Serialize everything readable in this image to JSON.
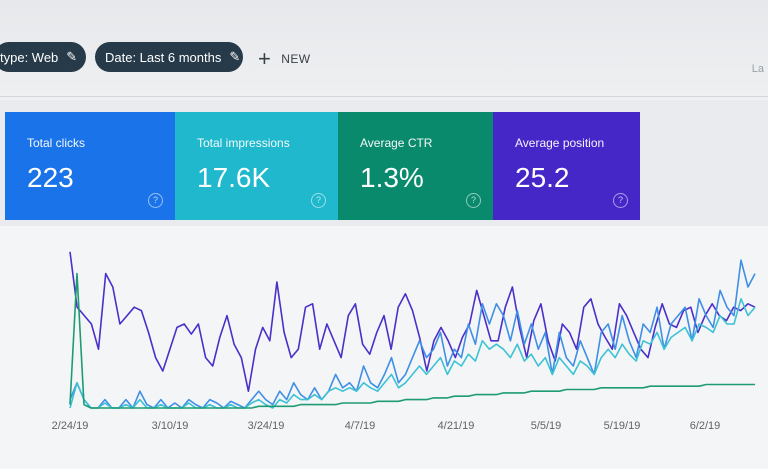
{
  "filters": {
    "type_chip": "type: Web",
    "date_chip": "Date: Last 6 months",
    "new_label": "NEW",
    "edge_text": "La"
  },
  "metrics": [
    {
      "label": "Total clicks",
      "value": "223",
      "color": "#1a73e8"
    },
    {
      "label": "Total impressions",
      "value": "17.6K",
      "color": "#1fb8cd"
    },
    {
      "label": "Average CTR",
      "value": "1.3%",
      "color": "#0a8a6c"
    },
    {
      "label": "Average position",
      "value": "25.2",
      "color": "#4527c8"
    }
  ],
  "chart_data": {
    "type": "line",
    "x_tick_labels": [
      "2/24/19",
      "3/10/19",
      "3/24/19",
      "4/7/19",
      "4/21/19",
      "5/5/19",
      "5/19/19",
      "6/2/19"
    ],
    "grid": false,
    "legend": "none",
    "series": [
      {
        "color": "#4b2fc9",
        "values": [
          0.93,
          0.6,
          0.55,
          0.5,
          0.35,
          0.8,
          0.72,
          0.5,
          0.55,
          0.6,
          0.58,
          0.45,
          0.3,
          0.22,
          0.35,
          0.48,
          0.5,
          0.44,
          0.5,
          0.3,
          0.25,
          0.42,
          0.55,
          0.38,
          0.3,
          0.1,
          0.35,
          0.48,
          0.4,
          0.75,
          0.45,
          0.3,
          0.35,
          0.6,
          0.62,
          0.35,
          0.5,
          0.4,
          0.3,
          0.55,
          0.62,
          0.38,
          0.32,
          0.45,
          0.55,
          0.35,
          0.6,
          0.68,
          0.58,
          0.42,
          0.22,
          0.4,
          0.48,
          0.4,
          0.3,
          0.42,
          0.5,
          0.7,
          0.55,
          0.4,
          0.4,
          0.6,
          0.72,
          0.48,
          0.3,
          0.52,
          0.62,
          0.4,
          0.28,
          0.5,
          0.45,
          0.35,
          0.6,
          0.65,
          0.5,
          0.42,
          0.35,
          0.62,
          0.55,
          0.45,
          0.35,
          0.3,
          0.48,
          0.62,
          0.5,
          0.48,
          0.58,
          0.6,
          0.45,
          0.55,
          0.62,
          0.55,
          0.52,
          0.6,
          0.58,
          0.62,
          0.6
        ]
      },
      {
        "color": "#3f8fe6",
        "values": [
          0.05,
          0.15,
          0.05,
          0.0,
          0.0,
          0.05,
          0.0,
          0.0,
          0.05,
          0.0,
          0.1,
          0.02,
          0.0,
          0.05,
          0.0,
          0.03,
          0.0,
          0.05,
          0.02,
          0.0,
          0.05,
          0.03,
          0.0,
          0.04,
          0.02,
          0.0,
          0.05,
          0.1,
          0.05,
          0.02,
          0.1,
          0.05,
          0.15,
          0.08,
          0.05,
          0.12,
          0.05,
          0.1,
          0.2,
          0.12,
          0.15,
          0.1,
          0.25,
          0.15,
          0.12,
          0.2,
          0.3,
          0.15,
          0.2,
          0.3,
          0.4,
          0.3,
          0.35,
          0.45,
          0.25,
          0.35,
          0.3,
          0.5,
          0.38,
          0.62,
          0.5,
          0.62,
          0.55,
          0.4,
          0.58,
          0.38,
          0.5,
          0.35,
          0.45,
          0.2,
          0.45,
          0.3,
          0.25,
          0.4,
          0.3,
          0.2,
          0.45,
          0.5,
          0.35,
          0.55,
          0.4,
          0.3,
          0.5,
          0.45,
          0.6,
          0.35,
          0.5,
          0.55,
          0.6,
          0.4,
          0.65,
          0.55,
          0.48,
          0.7,
          0.6,
          0.55,
          0.88,
          0.72,
          0.8
        ]
      },
      {
        "color": "#3cc2d4",
        "values": [
          0.0,
          0.15,
          0.05,
          0.0,
          0.0,
          0.03,
          0.0,
          0.0,
          0.02,
          0.0,
          0.05,
          0.0,
          0.0,
          0.02,
          0.0,
          0.0,
          0.0,
          0.03,
          0.0,
          0.0,
          0.02,
          0.0,
          0.0,
          0.02,
          0.0,
          0.0,
          0.03,
          0.05,
          0.02,
          0.0,
          0.05,
          0.03,
          0.08,
          0.05,
          0.05,
          0.08,
          0.05,
          0.1,
          0.12,
          0.1,
          0.12,
          0.1,
          0.15,
          0.12,
          0.1,
          0.15,
          0.2,
          0.12,
          0.15,
          0.2,
          0.25,
          0.2,
          0.25,
          0.3,
          0.2,
          0.28,
          0.25,
          0.32,
          0.28,
          0.4,
          0.35,
          0.38,
          0.35,
          0.3,
          0.38,
          0.28,
          0.32,
          0.25,
          0.3,
          0.2,
          0.3,
          0.25,
          0.2,
          0.28,
          0.25,
          0.2,
          0.3,
          0.35,
          0.3,
          0.38,
          0.32,
          0.28,
          0.4,
          0.38,
          0.45,
          0.35,
          0.42,
          0.45,
          0.48,
          0.4,
          0.5,
          0.48,
          0.45,
          0.55,
          0.5,
          0.5,
          0.65,
          0.55,
          0.6
        ]
      },
      {
        "color": "#1e9b74",
        "values": [
          0.02,
          0.8,
          0.02,
          0.0,
          0.0,
          0.0,
          0.0,
          0.0,
          0.0,
          0.0,
          0.0,
          0.0,
          0.0,
          0.0,
          0.0,
          0.0,
          0.0,
          0.0,
          0.0,
          0.0,
          0.0,
          0.0,
          0.0,
          0.0,
          0.0,
          0.0,
          0.0,
          0.01,
          0.01,
          0.01,
          0.01,
          0.01,
          0.01,
          0.02,
          0.02,
          0.02,
          0.02,
          0.02,
          0.02,
          0.03,
          0.03,
          0.03,
          0.03,
          0.03,
          0.04,
          0.04,
          0.04,
          0.04,
          0.05,
          0.05,
          0.05,
          0.05,
          0.06,
          0.06,
          0.06,
          0.07,
          0.07,
          0.07,
          0.08,
          0.08,
          0.08,
          0.08,
          0.09,
          0.09,
          0.09,
          0.09,
          0.1,
          0.1,
          0.1,
          0.1,
          0.1,
          0.11,
          0.11,
          0.11,
          0.11,
          0.11,
          0.12,
          0.12,
          0.12,
          0.12,
          0.12,
          0.12,
          0.12,
          0.13,
          0.13,
          0.13,
          0.13,
          0.13,
          0.13,
          0.13,
          0.13,
          0.14,
          0.14,
          0.14,
          0.14,
          0.14,
          0.14,
          0.14,
          0.14
        ]
      }
    ]
  }
}
